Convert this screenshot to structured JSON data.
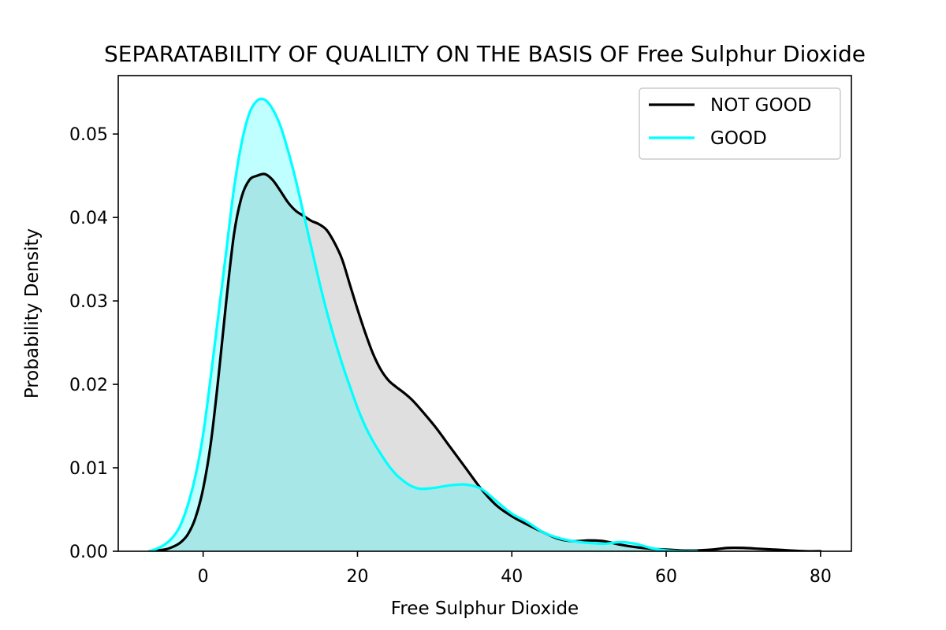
{
  "chart_data": {
    "type": "area",
    "title": "SEPARATABILITY OF QUALILTY ON THE BASIS OF Free Sulphur Dioxide",
    "xlabel": "Free Sulphur Dioxide",
    "ylabel": "Probability Density",
    "xlim": [
      -11,
      84
    ],
    "ylim": [
      0,
      0.057
    ],
    "xticks": [
      0,
      20,
      40,
      60,
      80
    ],
    "xtick_labels": [
      "0",
      "20",
      "40",
      "60",
      "80"
    ],
    "yticks": [
      0,
      0.01,
      0.02,
      0.03,
      0.04,
      0.05
    ],
    "ytick_labels": [
      "0.00",
      "0.01",
      "0.02",
      "0.03",
      "0.04",
      "0.05"
    ],
    "grid": false,
    "legend_position": "top-right",
    "series": [
      {
        "name": "NOT GOOD",
        "color": "#000000",
        "fill": "#808080",
        "x": [
          -7,
          -5,
          -4,
          -3,
          -2,
          -1,
          0,
          1,
          2,
          3,
          4,
          5,
          6,
          7,
          8,
          9,
          10,
          11,
          12,
          13,
          14,
          15,
          16,
          17,
          18,
          19,
          20,
          21,
          22,
          23,
          24,
          25,
          26,
          27,
          28,
          30,
          32,
          34,
          36,
          38,
          40,
          42,
          44,
          46,
          48,
          50,
          52,
          54,
          56,
          58,
          60,
          62,
          64,
          66,
          68,
          70,
          72,
          74,
          76,
          78,
          80
        ],
        "y": [
          0.0,
          0.0002,
          0.0005,
          0.001,
          0.002,
          0.004,
          0.0075,
          0.013,
          0.021,
          0.03,
          0.038,
          0.0425,
          0.0445,
          0.045,
          0.0452,
          0.0445,
          0.0432,
          0.0418,
          0.0408,
          0.0402,
          0.0396,
          0.0392,
          0.0385,
          0.037,
          0.035,
          0.032,
          0.029,
          0.0262,
          0.0237,
          0.0218,
          0.0205,
          0.0197,
          0.019,
          0.0182,
          0.0172,
          0.015,
          0.0125,
          0.01,
          0.0075,
          0.0055,
          0.0042,
          0.0032,
          0.0023,
          0.0015,
          0.0012,
          0.0013,
          0.0012,
          0.0008,
          0.0005,
          0.0003,
          0.0002,
          0.0001,
          0.0001,
          0.0002,
          0.0004,
          0.0004,
          0.0003,
          0.0002,
          0.0001,
          0.0,
          0.0
        ]
      },
      {
        "name": "GOOD",
        "color": "#00ffff",
        "fill": "#00ffff",
        "x": [
          -7,
          -6,
          -5,
          -4,
          -3,
          -2,
          -1,
          0,
          1,
          2,
          3,
          4,
          5,
          6,
          7,
          8,
          9,
          10,
          11,
          12,
          13,
          14,
          15,
          16,
          17,
          18,
          19,
          20,
          21,
          22,
          23,
          24,
          25,
          26,
          27,
          28,
          29,
          30,
          32,
          34,
          36,
          38,
          40,
          42,
          44,
          46,
          48,
          50,
          52,
          54,
          56,
          58,
          60,
          62,
          64
        ],
        "y": [
          0.0,
          0.0003,
          0.0008,
          0.0016,
          0.003,
          0.0055,
          0.009,
          0.014,
          0.021,
          0.0285,
          0.036,
          0.0435,
          0.049,
          0.0525,
          0.054,
          0.0541,
          0.053,
          0.051,
          0.048,
          0.0445,
          0.0405,
          0.0365,
          0.0325,
          0.0288,
          0.0255,
          0.0225,
          0.0198,
          0.0172,
          0.015,
          0.0132,
          0.0117,
          0.0103,
          0.0092,
          0.0084,
          0.0078,
          0.0075,
          0.0075,
          0.0076,
          0.0079,
          0.008,
          0.0075,
          0.006,
          0.0045,
          0.0035,
          0.0023,
          0.0016,
          0.0012,
          0.001,
          0.0009,
          0.0011,
          0.0009,
          0.0004,
          0.0001,
          0.0,
          0.0
        ]
      }
    ]
  }
}
